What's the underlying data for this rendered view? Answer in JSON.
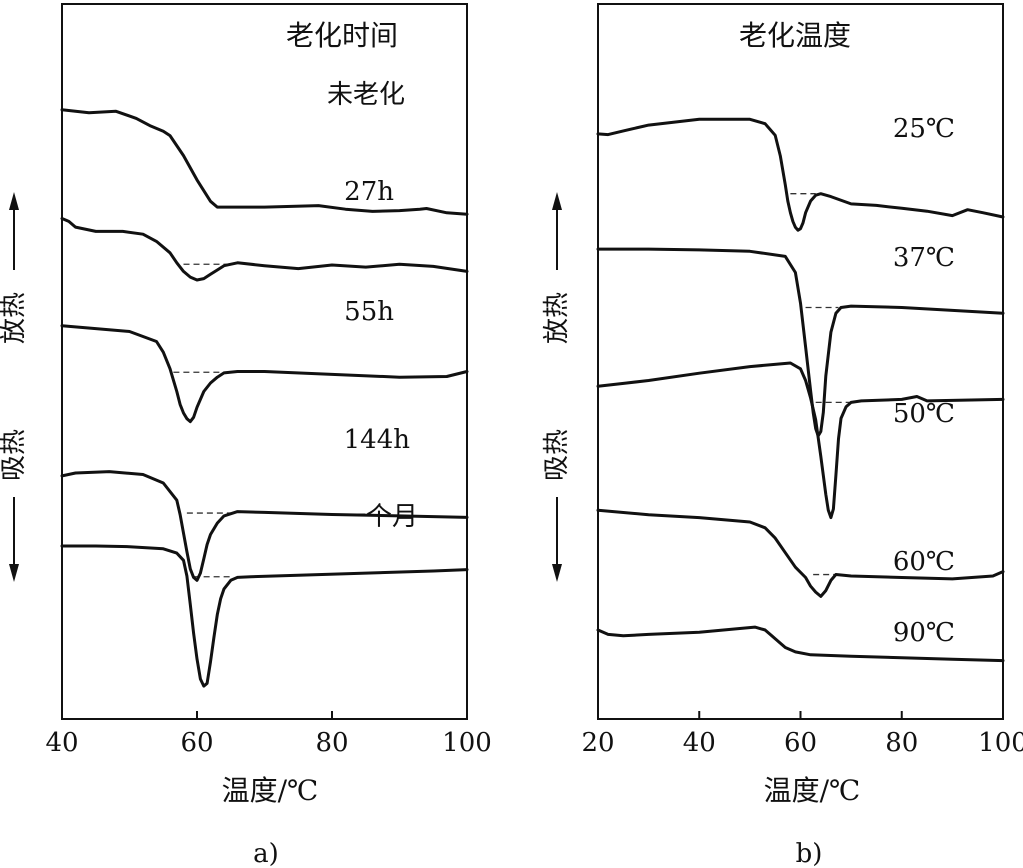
{
  "chart_data": [
    {
      "id": "a",
      "type": "line",
      "panel_label": "a)",
      "title": "老化时间",
      "xlabel": "温度/℃",
      "ylabel_up": "放热",
      "ylabel_down": "吸热",
      "xlim": [
        40,
        100
      ],
      "xticks": [
        "40",
        "60",
        "80",
        "100"
      ],
      "grid": false,
      "series": [
        {
          "name": "未老化",
          "x": [
            40,
            44,
            48,
            51,
            53,
            55,
            56,
            58,
            60,
            62,
            63,
            70,
            78,
            82,
            86,
            90,
            93,
            94,
            97,
            100
          ],
          "y": [
            73.2,
            72.8,
            73.0,
            72.0,
            71.0,
            70.2,
            69.6,
            66.8,
            63.4,
            60.4,
            59.6,
            59.6,
            59.8,
            59.3,
            59.0,
            59.1,
            59.3,
            59.4,
            58.8,
            58.6
          ]
        },
        {
          "name": "27h",
          "x": [
            40,
            41,
            42,
            45,
            49,
            52,
            54,
            56,
            57,
            58,
            59,
            60,
            61,
            62,
            63,
            64,
            66,
            70,
            75,
            80,
            85,
            90,
            95,
            100
          ],
          "y": [
            58.0,
            57.6,
            56.8,
            56.2,
            56.2,
            55.8,
            54.8,
            53.2,
            51.8,
            50.6,
            49.8,
            49.4,
            49.6,
            50.2,
            50.8,
            51.4,
            51.8,
            51.4,
            51.0,
            51.5,
            51.2,
            51.6,
            51.3,
            50.6
          ]
        },
        {
          "name": "55h",
          "x": [
            40,
            45,
            50,
            54,
            55,
            56,
            57,
            57.5,
            58,
            58.5,
            59,
            59.5,
            60,
            61,
            62,
            63,
            64,
            66,
            70,
            80,
            90,
            97,
            100
          ],
          "y": [
            43.0,
            42.6,
            42.2,
            40.8,
            39.3,
            37.0,
            33.8,
            32.0,
            30.8,
            30.0,
            29.6,
            30.2,
            31.6,
            33.8,
            35.0,
            35.8,
            36.4,
            36.6,
            36.6,
            36.2,
            35.8,
            35.9,
            36.6
          ]
        },
        {
          "name": "144h",
          "x": [
            40,
            42,
            47,
            52,
            55,
            57,
            57.5,
            58,
            58.5,
            59,
            59.5,
            60,
            60.5,
            61,
            61.5,
            62,
            63,
            64,
            66,
            70,
            80,
            90,
            100
          ],
          "y": [
            22.0,
            22.4,
            22.6,
            22.2,
            21.0,
            18.6,
            16.6,
            14.0,
            11.4,
            9.0,
            7.8,
            7.4,
            8.4,
            10.4,
            12.4,
            13.8,
            15.4,
            16.4,
            17.0,
            16.9,
            16.6,
            16.4,
            16.2
          ]
        },
        {
          "name": "一个月",
          "x": [
            40,
            45,
            50,
            55,
            57,
            58,
            58.5,
            59,
            59.5,
            60,
            60.5,
            61,
            61.5,
            62,
            62.5,
            63,
            63.5,
            64,
            65,
            66,
            68,
            75,
            85,
            95,
            100
          ],
          "y": [
            12.2,
            12.2,
            12.1,
            11.8,
            11.2,
            10.2,
            8.0,
            4.0,
            0.0,
            -3.6,
            -6.4,
            -7.4,
            -7.0,
            -4.0,
            -0.6,
            2.6,
            4.8,
            6.2,
            7.4,
            7.8,
            7.9,
            8.1,
            8.4,
            8.7,
            8.9
          ]
        }
      ],
      "baselines": [
        {
          "series": "27h",
          "x1": 58,
          "x2": 65,
          "y": 51.6
        },
        {
          "series": "55h",
          "x1": 56.5,
          "x2": 64,
          "y": 36.5
        },
        {
          "series": "144h",
          "x1": 58.5,
          "x2": 65,
          "y": 16.8
        },
        {
          "series": "一个月",
          "x1": 59.5,
          "x2": 65,
          "y": 7.9
        }
      ]
    },
    {
      "id": "b",
      "type": "line",
      "panel_label": "b)",
      "title": "老化温度",
      "xlabel": "温度/℃",
      "ylabel_up": "放热",
      "ylabel_down": "吸热",
      "xlim": [
        20,
        100
      ],
      "xticks": [
        "20",
        "40",
        "60",
        "80",
        "100"
      ],
      "grid": false,
      "series": [
        {
          "name": "25℃",
          "x": [
            20,
            22,
            25,
            30,
            40,
            50,
            53,
            55,
            56,
            57,
            57.5,
            58,
            58.5,
            59,
            59.5,
            60,
            60.5,
            61,
            62,
            63,
            64,
            66,
            70,
            75,
            80,
            85,
            90,
            93,
            96,
            100
          ],
          "y": [
            78.2,
            78.1,
            78.6,
            79.4,
            80.2,
            80.2,
            79.6,
            78.0,
            75.2,
            71.2,
            69.0,
            67.4,
            66.2,
            65.4,
            65.0,
            65.2,
            66.0,
            67.4,
            69.0,
            69.8,
            70.0,
            69.6,
            68.6,
            68.4,
            68.0,
            67.6,
            67.0,
            67.8,
            67.4,
            66.8
          ]
        },
        {
          "name": "37℃",
          "x": [
            20,
            30,
            40,
            50,
            57,
            59,
            60,
            61,
            62,
            62.5,
            63,
            63.5,
            64,
            64.5,
            65,
            66,
            67,
            68,
            70,
            80,
            100
          ],
          "y": [
            62.4,
            62.4,
            62.3,
            62.1,
            61.4,
            59.2,
            55.0,
            49.0,
            43.0,
            40.0,
            37.8,
            36.8,
            37.4,
            40.0,
            45.0,
            51.0,
            53.6,
            54.4,
            54.6,
            54.4,
            53.6
          ]
        },
        {
          "name": "50℃",
          "x": [
            20,
            30,
            40,
            50,
            58,
            60,
            61,
            62,
            63,
            64,
            65,
            65.5,
            66,
            66.5,
            67,
            67.5,
            68,
            69,
            70,
            72,
            80,
            83,
            85,
            100
          ],
          "y": [
            43.6,
            44.4,
            45.4,
            46.3,
            46.8,
            46.0,
            44.4,
            42.0,
            39.0,
            34.0,
            28.8,
            26.6,
            25.6,
            26.8,
            31.4,
            36.4,
            39.2,
            40.8,
            41.4,
            41.6,
            41.8,
            42.2,
            41.6,
            41.8
          ]
        },
        {
          "name": "60℃",
          "x": [
            20,
            30,
            40,
            50,
            53,
            55,
            57,
            59,
            61,
            62,
            63,
            64,
            65,
            66,
            67,
            70,
            80,
            90,
            98,
            100
          ],
          "y": [
            26.6,
            26.0,
            25.6,
            25.0,
            24.2,
            22.8,
            20.8,
            18.8,
            17.4,
            16.2,
            15.4,
            14.8,
            15.6,
            17.0,
            17.8,
            17.6,
            17.4,
            17.2,
            17.6,
            18.2
          ]
        },
        {
          "name": "90℃",
          "x": [
            20,
            22,
            25,
            30,
            40,
            48,
            51,
            53,
            55,
            57,
            59,
            62,
            70,
            80,
            90,
            100
          ],
          "y": [
            10.2,
            9.6,
            9.4,
            9.6,
            9.9,
            10.4,
            10.6,
            10.2,
            9.0,
            7.8,
            7.2,
            6.8,
            6.6,
            6.4,
            6.2,
            6.0
          ]
        }
      ],
      "baselines": [
        {
          "series": "25℃",
          "x1": 58,
          "x2": 63,
          "y": 70.0
        },
        {
          "series": "37℃",
          "x1": 61,
          "x2": 67.5,
          "y": 54.4
        },
        {
          "series": "50℃",
          "x1": 63,
          "x2": 70,
          "y": 41.4
        },
        {
          "series": "60℃",
          "x1": 62.5,
          "x2": 67,
          "y": 17.8
        }
      ]
    }
  ]
}
